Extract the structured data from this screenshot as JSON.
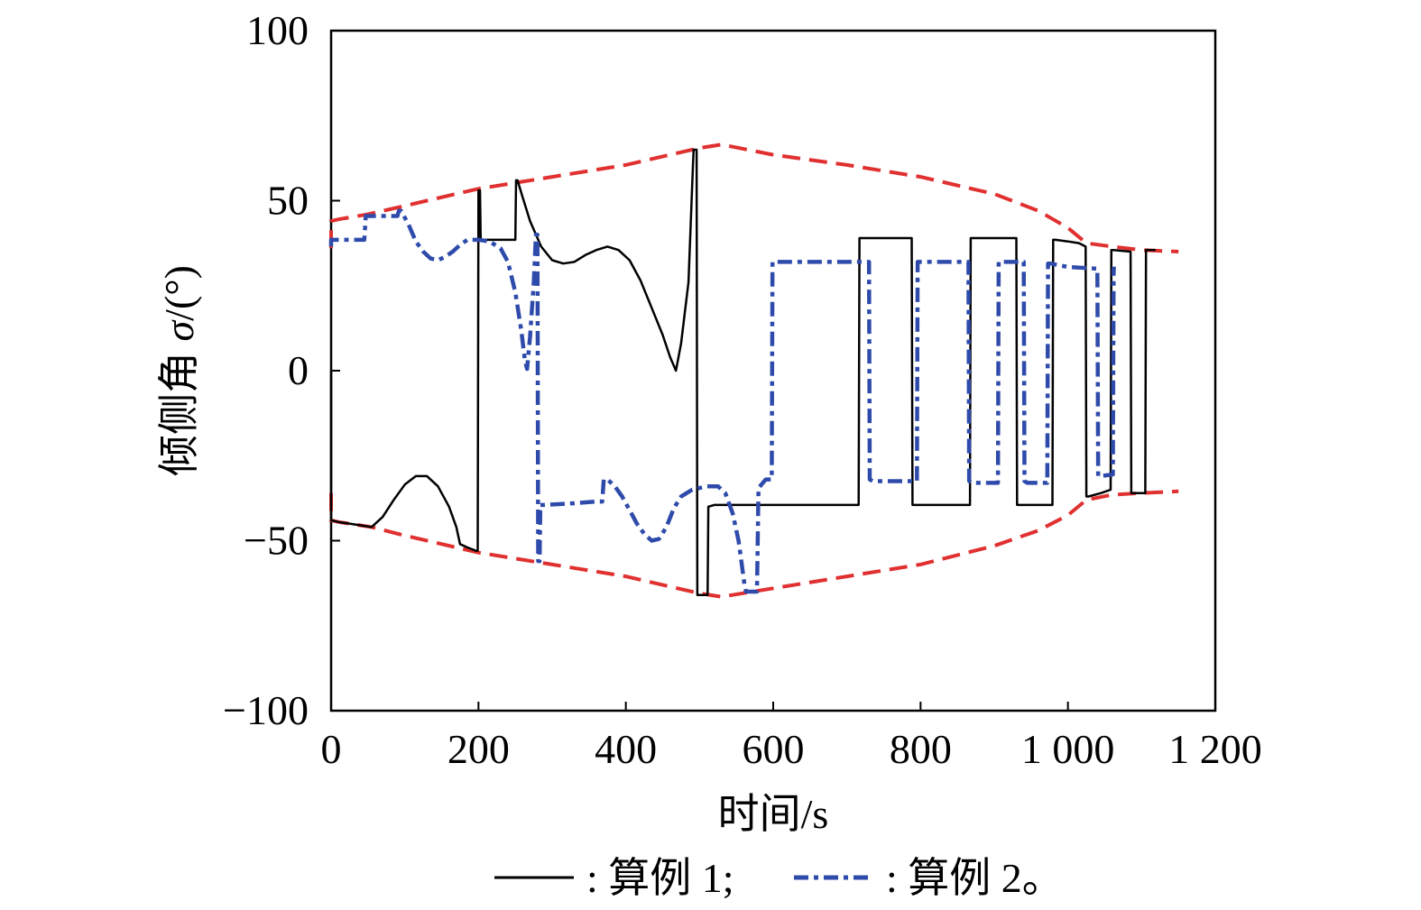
{
  "chart_data": {
    "type": "line",
    "xlabel": "时间/s",
    "ylabel_main": "倾侧角 ",
    "ylabel_symbol": "σ",
    "ylabel_unit": "/(°)",
    "xlim": [
      0,
      1200
    ],
    "ylim": [
      -100,
      100
    ],
    "xticks": [
      {
        "value": 0,
        "label": "0"
      },
      {
        "value": 200,
        "label": "200"
      },
      {
        "value": 400,
        "label": "400"
      },
      {
        "value": 600,
        "label": "600"
      },
      {
        "value": 800,
        "label": "800"
      },
      {
        "value": 1000,
        "label": "1 000"
      },
      {
        "value": 1200,
        "label": "1 200"
      }
    ],
    "yticks": [
      {
        "value": -100,
        "label": "−100"
      },
      {
        "value": -50,
        "label": "−50"
      },
      {
        "value": 0,
        "label": "0"
      },
      {
        "value": 50,
        "label": "50"
      },
      {
        "value": 100,
        "label": "100"
      }
    ],
    "legend_placement": "bottom",
    "legend": [
      {
        "label": ": 算例 1;",
        "color": "#000000",
        "dash": "solid"
      },
      {
        "label": ": 算例 2。",
        "color": "#2e4bab",
        "dash": "dashdot"
      }
    ],
    "series": [
      {
        "name": "算例 1",
        "color": "#000000",
        "dash": "solid",
        "points": [
          [
            0,
            0
          ],
          [
            0,
            -44
          ],
          [
            10,
            -44.5
          ],
          [
            25,
            -45
          ],
          [
            40,
            -45.5
          ],
          [
            55,
            -46
          ],
          [
            70,
            -43
          ],
          [
            85,
            -38
          ],
          [
            100,
            -33.5
          ],
          [
            115,
            -31
          ],
          [
            130,
            -31
          ],
          [
            145,
            -34
          ],
          [
            160,
            -40
          ],
          [
            170,
            -46
          ],
          [
            175,
            -51
          ],
          [
            185,
            -52
          ],
          [
            197,
            -53
          ],
          [
            199,
            -53
          ],
          [
            200,
            53
          ],
          [
            202,
            53
          ],
          [
            203,
            38.5
          ],
          [
            205,
            38.5
          ],
          [
            250,
            38.5
          ],
          [
            251,
            56
          ],
          [
            253,
            56
          ],
          [
            260,
            51
          ],
          [
            270,
            44
          ],
          [
            285,
            36.5
          ],
          [
            300,
            32.5
          ],
          [
            315,
            31.5
          ],
          [
            330,
            32
          ],
          [
            345,
            34
          ],
          [
            360,
            35.5
          ],
          [
            375,
            36.5
          ],
          [
            390,
            35.5
          ],
          [
            405,
            32.5
          ],
          [
            420,
            26.5
          ],
          [
            435,
            18.5
          ],
          [
            450,
            10.5
          ],
          [
            460,
            4
          ],
          [
            468,
            0
          ],
          [
            475,
            8
          ],
          [
            485,
            26
          ],
          [
            491,
            60
          ],
          [
            492,
            65
          ],
          [
            494,
            65
          ],
          [
            496,
            65
          ],
          [
            497,
            -66
          ],
          [
            500,
            -66
          ],
          [
            507,
            -66
          ],
          [
            511,
            -66
          ],
          [
            512,
            -40
          ],
          [
            520,
            -39.5
          ],
          [
            600,
            -39.5
          ],
          [
            650,
            -39.5
          ],
          [
            700,
            -39.5
          ],
          [
            716,
            -39.5
          ],
          [
            717,
            39
          ],
          [
            720,
            39
          ],
          [
            788,
            39
          ],
          [
            789,
            -39.5
          ],
          [
            793,
            -39.5
          ],
          [
            867,
            -39.5
          ],
          [
            868,
            39
          ],
          [
            871,
            39
          ],
          [
            930,
            39
          ],
          [
            931,
            -39.5
          ],
          [
            935,
            -39.5
          ],
          [
            979,
            -39.5
          ],
          [
            980,
            38.5
          ],
          [
            983,
            38.5
          ],
          [
            1000,
            38
          ],
          [
            1015,
            37.5
          ],
          [
            1024,
            36.5
          ],
          [
            1025,
            -37
          ],
          [
            1028,
            -37
          ],
          [
            1045,
            -36
          ],
          [
            1058,
            -35
          ],
          [
            1059,
            35.5
          ],
          [
            1062,
            35.5
          ],
          [
            1085,
            35
          ],
          [
            1086,
            -36
          ],
          [
            1090,
            -36
          ],
          [
            1105,
            -36
          ],
          [
            1106,
            35.5
          ],
          [
            1110,
            35.5
          ],
          [
            1119,
            35.5
          ]
        ]
      },
      {
        "name": "算例 2",
        "color": "#2e4bab",
        "dash": "dashdot",
        "points": [
          [
            0,
            36.5
          ],
          [
            0,
            38.5
          ],
          [
            10,
            38.5
          ],
          [
            45,
            38.5
          ],
          [
            47,
            45.5
          ],
          [
            50,
            45.5
          ],
          [
            90,
            45.5
          ],
          [
            92,
            47
          ],
          [
            95,
            47
          ],
          [
            105,
            43
          ],
          [
            115,
            38
          ],
          [
            125,
            35
          ],
          [
            135,
            33
          ],
          [
            145,
            32.5
          ],
          [
            155,
            33.5
          ],
          [
            165,
            35
          ],
          [
            175,
            37
          ],
          [
            185,
            38.5
          ],
          [
            200,
            38.5
          ],
          [
            215,
            38
          ],
          [
            230,
            36
          ],
          [
            240,
            32
          ],
          [
            250,
            23
          ],
          [
            258,
            12
          ],
          [
            263,
            3
          ],
          [
            266,
            0.5
          ],
          [
            270,
            10
          ],
          [
            275,
            26
          ],
          [
            278,
            40
          ],
          [
            280,
            40
          ],
          [
            281,
            -56
          ],
          [
            283,
            -56
          ],
          [
            284,
            -39.5
          ],
          [
            290,
            -39.5
          ],
          [
            330,
            -39
          ],
          [
            360,
            -38.5
          ],
          [
            368,
            -38.5
          ],
          [
            370,
            -32
          ],
          [
            375,
            -32
          ],
          [
            385,
            -34
          ],
          [
            395,
            -37
          ],
          [
            405,
            -41
          ],
          [
            415,
            -45
          ],
          [
            425,
            -48
          ],
          [
            435,
            -50
          ],
          [
            445,
            -49.5
          ],
          [
            455,
            -46
          ],
          [
            465,
            -40.5
          ],
          [
            475,
            -37
          ],
          [
            490,
            -35
          ],
          [
            510,
            -34
          ],
          [
            525,
            -34
          ],
          [
            535,
            -36
          ],
          [
            545,
            -42
          ],
          [
            553,
            -50
          ],
          [
            558,
            -58
          ],
          [
            561,
            -63
          ],
          [
            563,
            -65
          ],
          [
            566,
            -65
          ],
          [
            575,
            -65
          ],
          [
            578,
            -65
          ],
          [
            580,
            -34.5
          ],
          [
            590,
            -32
          ],
          [
            598,
            -32
          ],
          [
            599,
            32
          ],
          [
            605,
            32
          ],
          [
            730,
            32
          ],
          [
            731,
            -32
          ],
          [
            735,
            -32.5
          ],
          [
            795,
            -32.5
          ],
          [
            796,
            32
          ],
          [
            800,
            32
          ],
          [
            865,
            32
          ],
          [
            866,
            -32.5
          ],
          [
            870,
            -33
          ],
          [
            905,
            -33
          ],
          [
            906,
            32
          ],
          [
            909,
            32
          ],
          [
            940,
            32
          ],
          [
            941,
            -32.5
          ],
          [
            945,
            -33
          ],
          [
            972,
            -33
          ],
          [
            973,
            31.5
          ],
          [
            976,
            31.5
          ],
          [
            1000,
            30.5
          ],
          [
            1040,
            30
          ],
          [
            1041,
            -31
          ],
          [
            1045,
            -31
          ],
          [
            1061,
            -30.5
          ],
          [
            1062,
            30
          ],
          [
            1065,
            30
          ]
        ]
      }
    ],
    "envelope": {
      "name": "",
      "color": "#e03030",
      "dash": "dashed",
      "upper": [
        [
          0,
          36
        ],
        [
          0,
          44
        ],
        [
          10,
          44.5
        ],
        [
          50,
          46
        ],
        [
          100,
          48.5
        ],
        [
          200,
          53.5
        ],
        [
          300,
          57
        ],
        [
          400,
          60.5
        ],
        [
          500,
          65.5
        ],
        [
          530,
          66.5
        ],
        [
          600,
          63.5
        ],
        [
          700,
          60.5
        ],
        [
          800,
          57
        ],
        [
          900,
          52
        ],
        [
          960,
          47
        ],
        [
          1000,
          42
        ],
        [
          1025,
          37.5
        ],
        [
          1060,
          36.5
        ],
        [
          1100,
          35.5
        ],
        [
          1150,
          35
        ]
      ],
      "lower": [
        [
          0,
          -36
        ],
        [
          0,
          -44
        ],
        [
          10,
          -44.5
        ],
        [
          55,
          -46
        ],
        [
          100,
          -48.5
        ],
        [
          200,
          -53.5
        ],
        [
          300,
          -57
        ],
        [
          400,
          -60.5
        ],
        [
          500,
          -65.5
        ],
        [
          530,
          -66.5
        ],
        [
          600,
          -64
        ],
        [
          700,
          -60.5
        ],
        [
          800,
          -57
        ],
        [
          900,
          -51.5
        ],
        [
          960,
          -47
        ],
        [
          1000,
          -42.5
        ],
        [
          1025,
          -38
        ],
        [
          1060,
          -36.5
        ],
        [
          1100,
          -36
        ],
        [
          1150,
          -35.5
        ]
      ]
    }
  }
}
